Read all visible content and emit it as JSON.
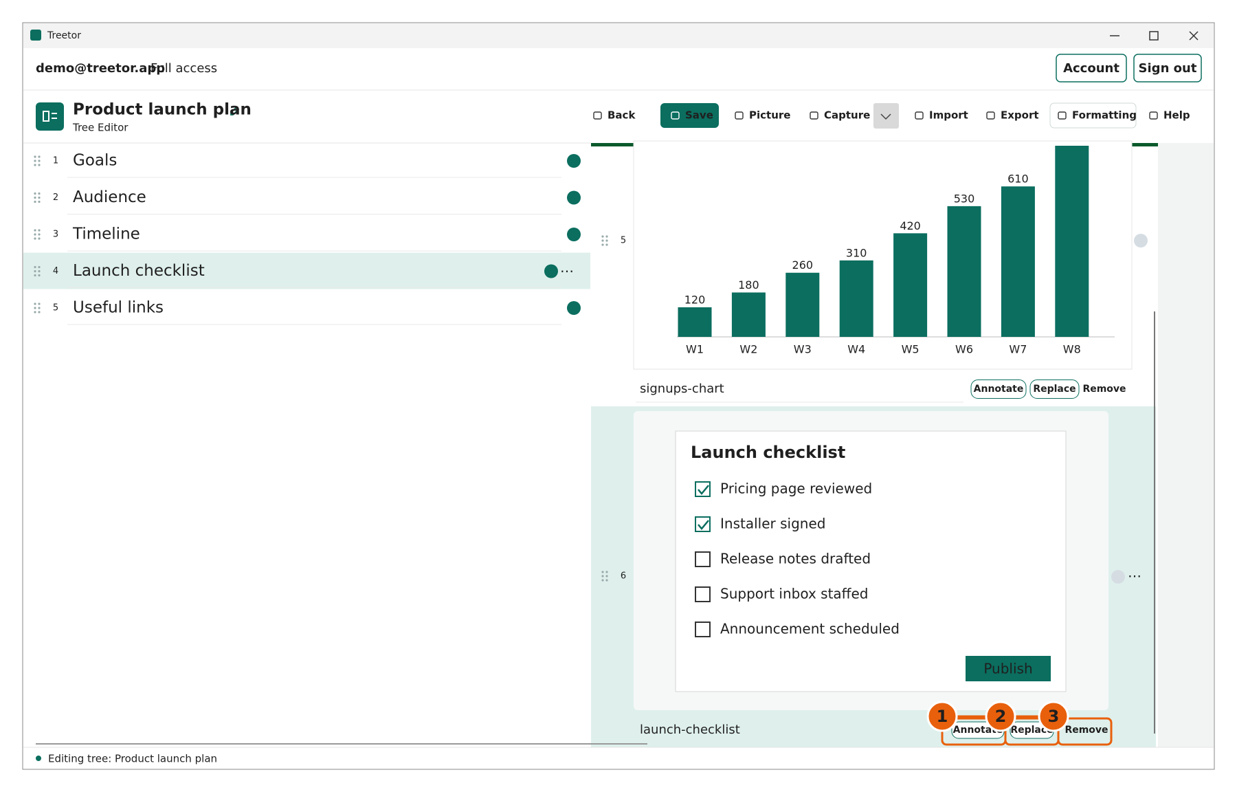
{
  "window": {
    "title": "Treetor"
  },
  "header": {
    "user": "demo@treetor.app",
    "access": "Full access",
    "buttons": [
      "Account",
      "Sign out"
    ]
  },
  "toolbar": {
    "title": "Product launch plan",
    "subtitle": "Tree Editor",
    "buttons": [
      "Back",
      "Save",
      "Picture",
      "Capture",
      "Import",
      "Export",
      "Formatting",
      "Help"
    ]
  },
  "tree": {
    "items": [
      {
        "number": 1,
        "label": "Goals"
      },
      {
        "number": 2,
        "label": "Audience"
      },
      {
        "number": 3,
        "label": "Timeline"
      },
      {
        "number": 4,
        "label": "Launch checklist"
      },
      {
        "number": 5,
        "label": "Useful links"
      }
    ]
  },
  "blocks": [
    {
      "number": 5,
      "name": "signups-chart",
      "actions": [
        "Annotate",
        "Replace",
        "Remove"
      ],
      "chart_data": {
        "type": "bar",
        "categories": [
          "W1",
          "W2",
          "W3",
          "W4",
          "W5",
          "W6",
          "W7",
          "W8"
        ],
        "values": [
          120,
          180,
          260,
          310,
          420,
          530,
          610,
          780
        ],
        "color": "#0b6e5f",
        "ylim": [
          0,
          800
        ]
      }
    },
    {
      "number": 6,
      "name": "launch-checklist",
      "actions": [
        "Annotate",
        "Replace",
        "Remove"
      ],
      "checklist": {
        "title": "Launch checklist",
        "items": [
          {
            "label": "Pricing page reviewed",
            "checked": true
          },
          {
            "label": "Installer signed",
            "checked": true
          },
          {
            "label": "Release notes drafted",
            "checked": false
          },
          {
            "label": "Support inbox staffed",
            "checked": false
          },
          {
            "label": "Announcement scheduled",
            "checked": false
          }
        ],
        "button": "Publish"
      }
    }
  ],
  "callouts": [
    1,
    2,
    3
  ],
  "status": "Editing tree: Product launch plan"
}
